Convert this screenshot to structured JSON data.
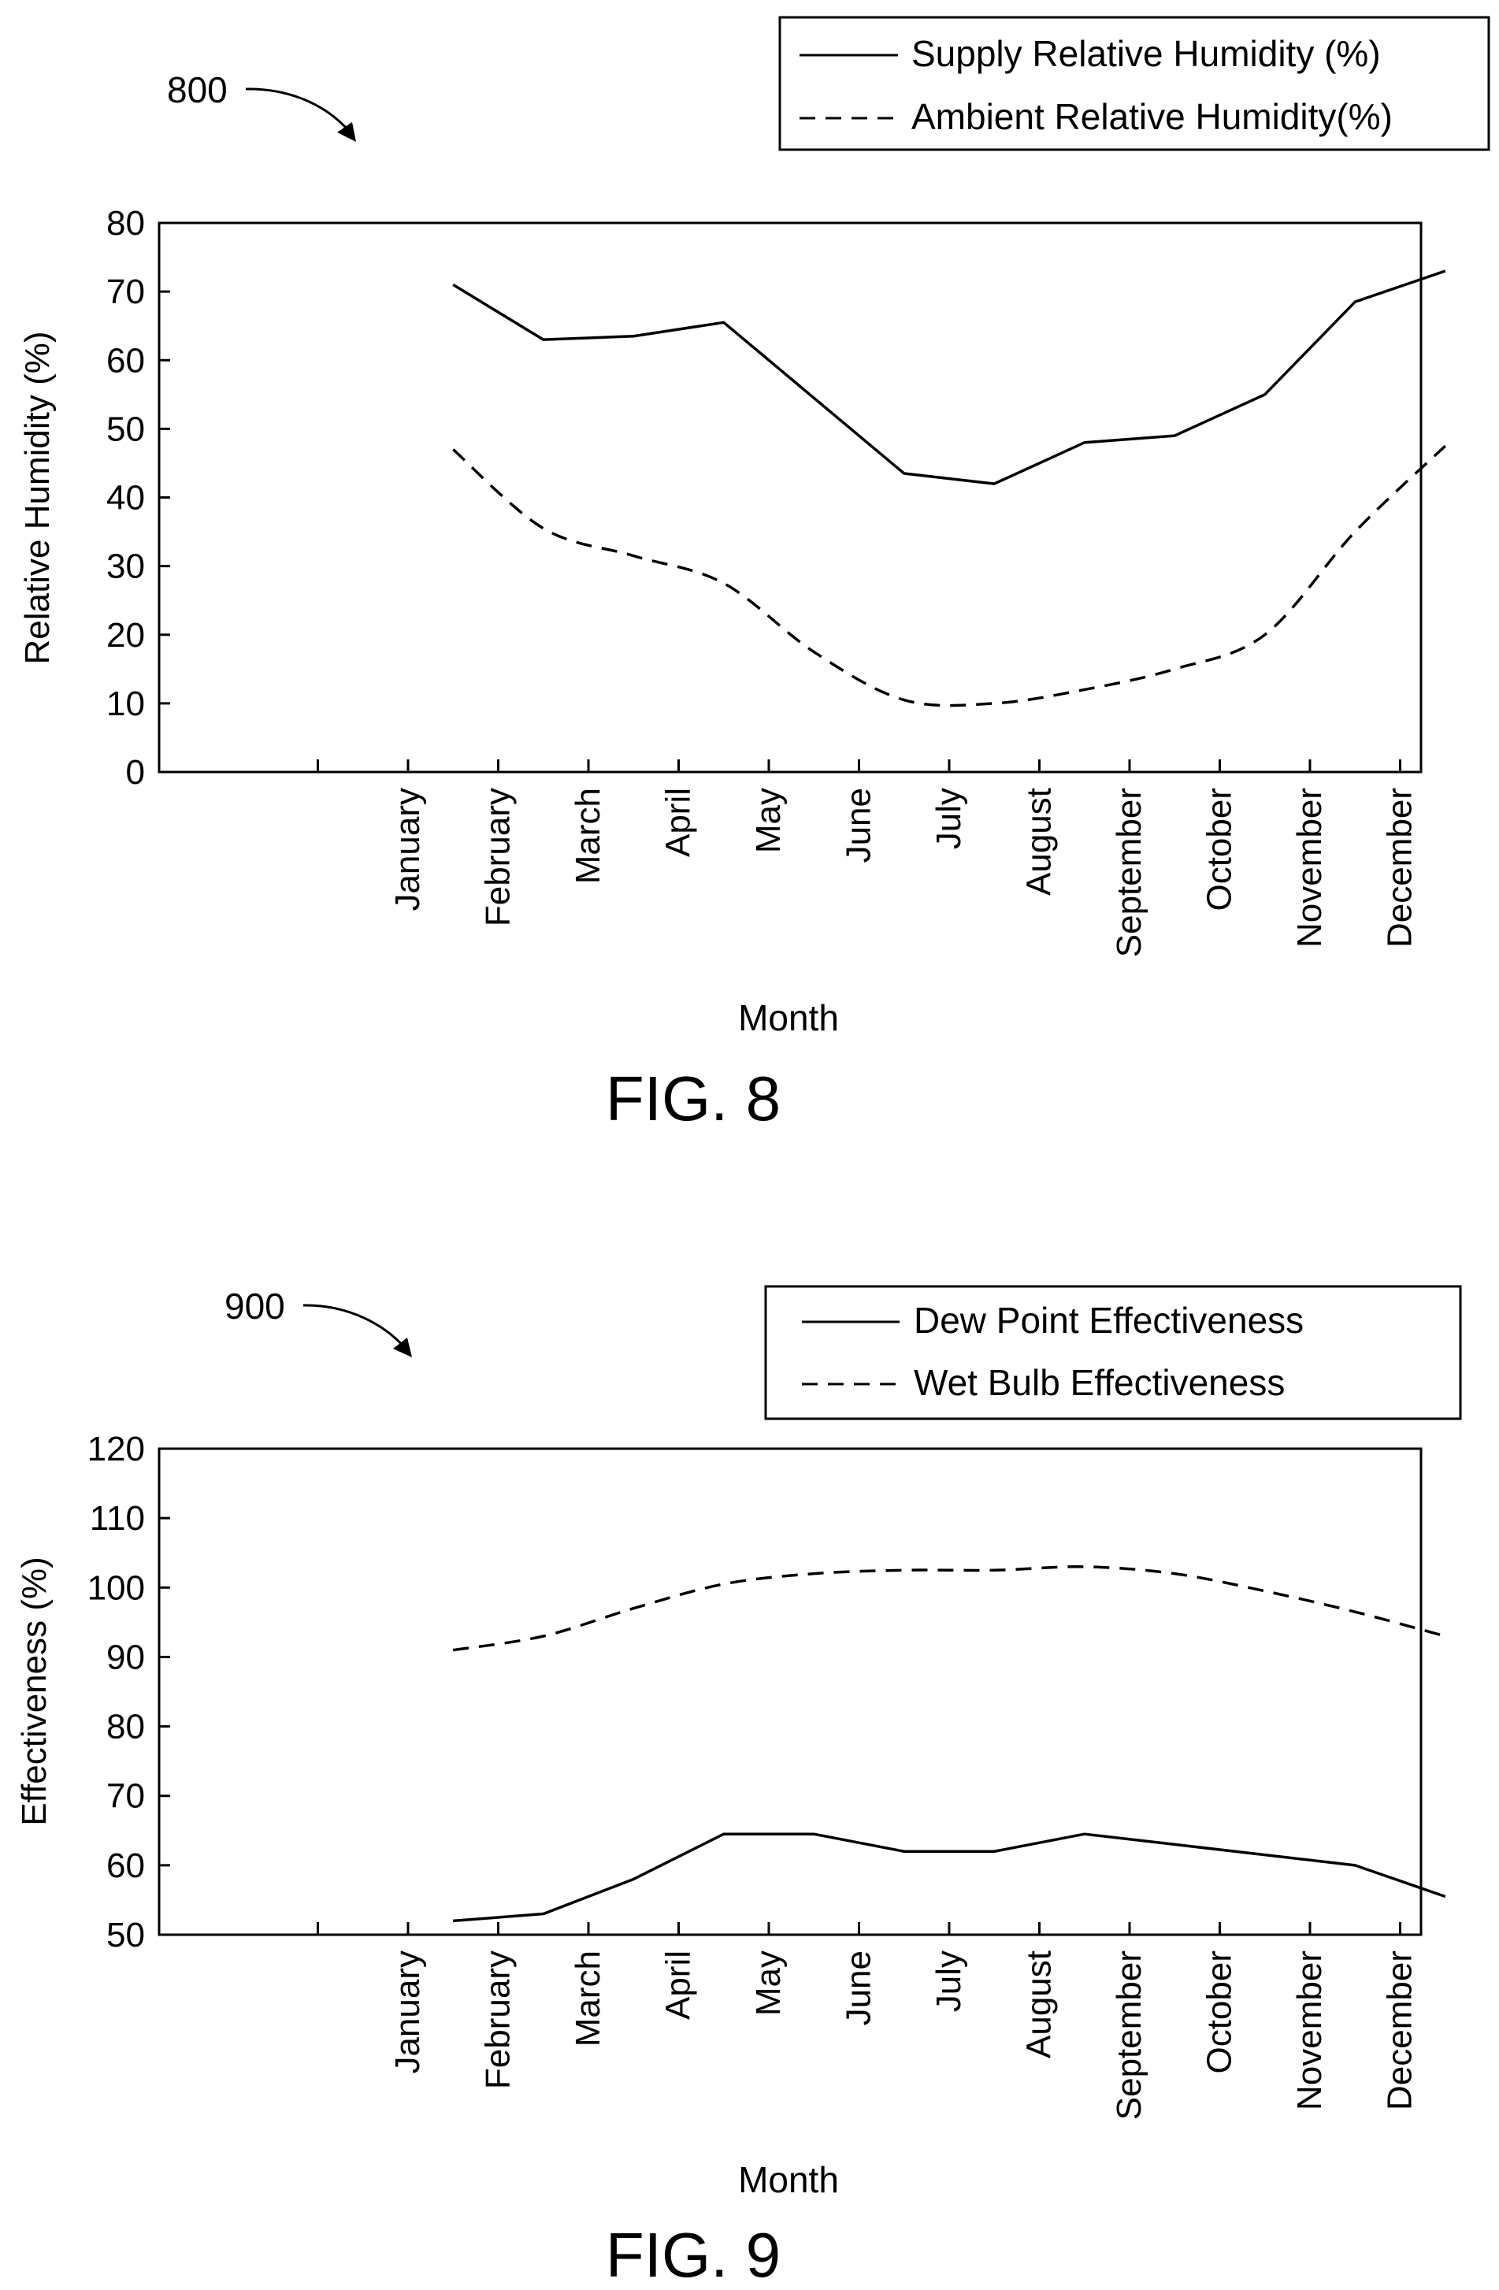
{
  "figures": [
    {
      "ref_number": "800",
      "caption": "FIG. 8",
      "legend": [
        {
          "label": "Supply Relative Humidity (%)",
          "style": "solid"
        },
        {
          "label": "Ambient Relative Humidity(%)",
          "style": "dashed"
        }
      ]
    },
    {
      "ref_number": "900",
      "caption": "FIG. 9",
      "legend": [
        {
          "label": "Dew Point Effectiveness",
          "style": "solid"
        },
        {
          "label": "Wet Bulb Effectiveness",
          "style": "dashed"
        }
      ]
    }
  ],
  "chart_data": [
    {
      "type": "line",
      "title": "",
      "xlabel": "Month",
      "ylabel": "Relative Humidity (%)",
      "ylim": [
        0,
        80
      ],
      "yticks": [
        0,
        10,
        20,
        30,
        40,
        50,
        60,
        70,
        80
      ],
      "categories": [
        "January",
        "February",
        "March",
        "April",
        "May",
        "June",
        "July",
        "August",
        "September",
        "October",
        "November",
        "December"
      ],
      "x": [
        1.5,
        2.5,
        3.5,
        4.5,
        5.5,
        6.5,
        7.5,
        8.5,
        9.5,
        10.5,
        11.5,
        12.5
      ],
      "grid": false,
      "legend_position": "top-right",
      "series": [
        {
          "name": "Supply Relative Humidity (%)",
          "style": "solid",
          "values": [
            71,
            63,
            63.5,
            65.5,
            54.5,
            43.5,
            42,
            48,
            49,
            55,
            68.5,
            73
          ]
        },
        {
          "name": "Ambient Relative Humidity(%)",
          "style": "dashed",
          "values": [
            47,
            35.5,
            31.5,
            27.5,
            17.5,
            10.5,
            10,
            12,
            15,
            20,
            35,
            47.5
          ]
        }
      ]
    },
    {
      "type": "line",
      "title": "",
      "xlabel": "Month",
      "ylabel": "Effectiveness (%)",
      "ylim": [
        50,
        120
      ],
      "yticks": [
        50,
        60,
        70,
        80,
        90,
        100,
        110,
        120
      ],
      "categories": [
        "January",
        "February",
        "March",
        "April",
        "May",
        "June",
        "July",
        "August",
        "September",
        "October",
        "November",
        "December"
      ],
      "x": [
        1.5,
        2.5,
        3.5,
        4.5,
        5.5,
        6.5,
        7.5,
        8.5,
        9.5,
        10.5,
        11.5,
        12.5
      ],
      "grid": false,
      "legend_position": "top-right",
      "series": [
        {
          "name": "Dew Point Effectiveness",
          "style": "solid",
          "values": [
            52,
            53,
            58,
            64.5,
            64.5,
            62,
            62,
            64.5,
            63,
            61.5,
            60,
            55.5
          ]
        },
        {
          "name": "Wet Bulb Effectiveness",
          "style": "dashed",
          "values": [
            91,
            93,
            97,
            100.5,
            102,
            102.5,
            102.5,
            103,
            102,
            99.5,
            96.5,
            93
          ]
        }
      ]
    }
  ]
}
